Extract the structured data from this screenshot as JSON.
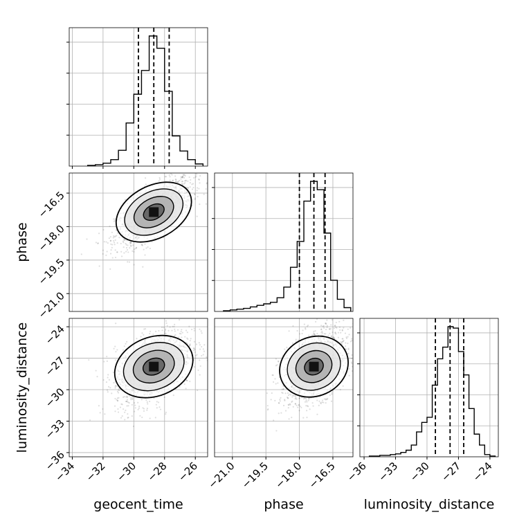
{
  "chart_data": {
    "type": "corner",
    "parameters": [
      "geocent_time",
      "phase",
      "luminosity_distance"
    ],
    "axis_labels": {
      "x": [
        "geocent_time",
        "phase",
        "luminosity_distance"
      ],
      "y_row1": "phase",
      "y_row2": "luminosity_distance"
    },
    "ranges": {
      "geocent_time": [
        -34.2,
        -25.2
      ],
      "phase": [
        -21.8,
        -15.6
      ],
      "luminosity_distance": [
        -36.4,
        -23.2
      ]
    },
    "ticks": {
      "geocent_time": [
        -34,
        -32,
        -30,
        -28,
        -26
      ],
      "phase": [
        -21.0,
        -19.5,
        -18.0,
        -16.5
      ],
      "luminosity_distance": [
        -36,
        -33,
        -30,
        -27,
        -24
      ]
    },
    "tick_labels": {
      "geocent_time": [
        "−34",
        "−32",
        "−30",
        "−28",
        "−26"
      ],
      "phase": [
        "−21.0",
        "−19.5",
        "−18.0",
        "−16.5"
      ],
      "luminosity_distance": [
        "−36",
        "−33",
        "−30",
        "−27",
        "−24"
      ]
    },
    "quantiles": {
      "geocent_time": [
        -29.7,
        -28.7,
        -27.7
      ],
      "phase": [
        -18.0,
        -17.35,
        -16.85
      ],
      "luminosity_distance": [
        -29.2,
        -27.8,
        -26.5
      ]
    },
    "histograms": {
      "geocent_time": {
        "bins": [
          -33,
          -32.5,
          -32,
          -31.5,
          -31,
          -30.5,
          -30,
          -29.5,
          -29,
          -28.5,
          -28,
          -27.5,
          -27,
          -26.5,
          -26,
          -25.5
        ],
        "counts": [
          1,
          2,
          4,
          9,
          22,
          60,
          100,
          133,
          181,
          164,
          104,
          42,
          21,
          9,
          3
        ]
      },
      "phase": {
        "bins": [
          -21.4,
          -21.1,
          -20.8,
          -20.5,
          -20.2,
          -19.9,
          -19.6,
          -19.3,
          -19.0,
          -18.7,
          -18.4,
          -18.1,
          -17.8,
          -17.5,
          -17.2,
          -16.9,
          -16.6,
          -16.3,
          -16.0,
          -15.7
        ],
        "counts": [
          1,
          2,
          3,
          4,
          6,
          8,
          10,
          12,
          18,
          32,
          58,
          92,
          145,
          171,
          160,
          103,
          41,
          16,
          5
        ]
      },
      "luminosity_distance": {
        "bins": [
          -35.5,
          -35,
          -34.5,
          -34,
          -33.5,
          -33,
          -32.5,
          -32,
          -31.5,
          -31,
          -30.5,
          -30,
          -29.5,
          -29,
          -28.5,
          -28,
          -27.5,
          -27,
          -26.5,
          -26,
          -25.5,
          -25,
          -24.5,
          -24,
          -23.5
        ],
        "counts": [
          1,
          1,
          2,
          2,
          3,
          4,
          6,
          9,
          16,
          34,
          47,
          54,
          98,
          134,
          150,
          178,
          176,
          144,
          112,
          66,
          31,
          16,
          3,
          1
        ]
      }
    },
    "pairs": [
      {
        "x": "geocent_time",
        "y": "phase",
        "mean": [
          -28.7,
          -17.35
        ],
        "sd": [
          1.25,
          0.75
        ],
        "corr": 0.7
      },
      {
        "x": "geocent_time",
        "y": "luminosity_distance",
        "mean": [
          -28.7,
          -27.8
        ],
        "sd": [
          1.25,
          1.8
        ],
        "corr": 0.45
      },
      {
        "x": "phase",
        "y": "luminosity_distance",
        "mean": [
          -17.35,
          -27.8
        ],
        "sd": [
          0.75,
          1.8
        ],
        "corr": 0.45
      }
    ],
    "grid": true
  }
}
